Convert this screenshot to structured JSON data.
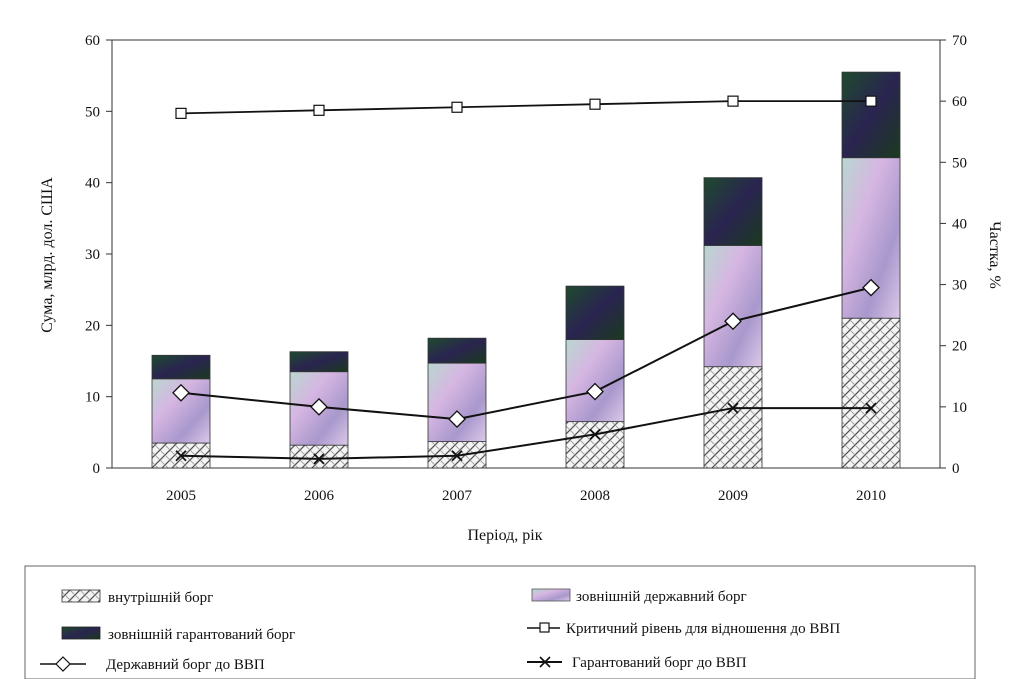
{
  "chart_data": {
    "type": "bar",
    "subtype": "stacked-bar-with-lines",
    "categories": [
      "2005",
      "2006",
      "2007",
      "2008",
      "2009",
      "2010"
    ],
    "xlabel": "Період, рік",
    "ylabel_left": "Сума, млрд. дол. США",
    "ylabel_right": "Частка, %",
    "ylim_left": [
      0,
      60
    ],
    "yticks_left": [
      0,
      10,
      20,
      30,
      40,
      50,
      60
    ],
    "ylim_right": [
      0,
      70
    ],
    "yticks_right": [
      0,
      10,
      20,
      30,
      40,
      50,
      60,
      70
    ],
    "grid": false,
    "legend_position": "bottom",
    "bar_series": [
      {
        "name": "внутрішній борг",
        "values": [
          3.5,
          3.2,
          3.7,
          6.5,
          14.2,
          21.0
        ],
        "pattern": "hatch",
        "color": "#555555"
      },
      {
        "name": "зовнішній державний борг",
        "values": [
          9.0,
          10.3,
          11.0,
          11.5,
          17.0,
          22.5
        ],
        "pattern": "gradient",
        "color": "#c7a8d8"
      },
      {
        "name": "зовнішній гарантований борг",
        "values": [
          3.3,
          2.8,
          3.5,
          7.5,
          9.5,
          12.0
        ],
        "pattern": "dark",
        "color": "#1f3a2a"
      }
    ],
    "line_series": [
      {
        "name": "Критичний рівень для відношення до ВВП",
        "axis": "right",
        "marker": "square",
        "values": [
          58,
          58.5,
          59,
          59.5,
          60,
          60
        ]
      },
      {
        "name": "Державний борг до ВВП",
        "axis": "right",
        "marker": "diamond",
        "values": [
          12.3,
          10.0,
          8.0,
          12.5,
          24.0,
          29.5
        ]
      },
      {
        "name": "Гарантований борг до ВВП",
        "axis": "right",
        "marker": "x",
        "values": [
          2.0,
          1.5,
          2.0,
          5.5,
          9.8,
          9.8
        ]
      }
    ]
  }
}
